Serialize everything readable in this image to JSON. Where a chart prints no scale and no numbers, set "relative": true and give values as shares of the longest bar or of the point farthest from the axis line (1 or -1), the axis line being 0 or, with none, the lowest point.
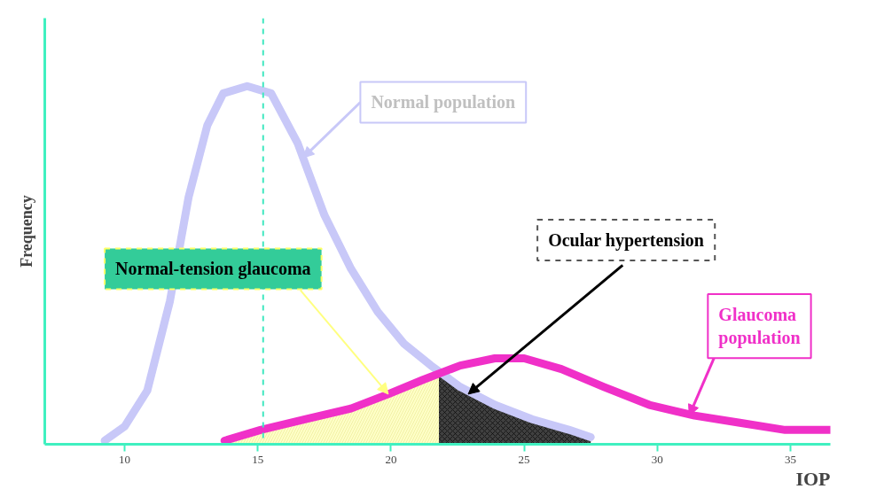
{
  "chart_data": {
    "type": "line",
    "relative": true,
    "xlabel": "IOP",
    "ylabel": "Frequency",
    "xlim": [
      7,
      36.5
    ],
    "xticks": [
      10,
      15,
      20,
      25,
      30,
      35
    ],
    "grid": false,
    "marker": "none",
    "line_style": "solid",
    "series": [
      {
        "color": "#c8c8f8",
        "x": [
          9.25,
          10,
          10.85,
          11.7,
          12.4,
          13.1,
          13.7,
          14.6,
          15.5,
          16.5,
          17.5,
          18.5,
          19.5,
          20.5,
          21.5,
          22.6,
          23.9,
          25.3,
          26.7,
          27.5
        ],
        "values": [
          0.01,
          0.05,
          0.15,
          0.4,
          0.69,
          0.89,
          0.98,
          1.0,
          0.98,
          0.84,
          0.64,
          0.49,
          0.37,
          0.28,
          0.22,
          0.16,
          0.11,
          0.07,
          0.04,
          0.02
        ]
      },
      {
        "color": "#f030c8",
        "x": [
          13.75,
          15.1,
          16.8,
          18.5,
          19.9,
          21.2,
          22.6,
          23.9,
          25,
          26.4,
          28,
          29.7,
          31.4,
          33.1,
          34.8,
          36.5
        ],
        "values": [
          0.01,
          0.04,
          0.07,
          0.1,
          0.14,
          0.18,
          0.22,
          0.24,
          0.24,
          0.21,
          0.16,
          0.11,
          0.08,
          0.06,
          0.04,
          0.04
        ]
      },
      {
        "type": "area",
        "color": "#ffffc8",
        "x": [
          13.75,
          15.1,
          16.8,
          18.5,
          19.9,
          21.2,
          21.8
        ],
        "values": [
          0.01,
          0.04,
          0.07,
          0.1,
          0.14,
          0.18,
          0.2
        ]
      },
      {
        "type": "area",
        "color": "#404040",
        "x": [
          21.8,
          22.6,
          23.9,
          25.3,
          26.7,
          27.5
        ],
        "values": [
          0.2,
          0.16,
          0.11,
          0.07,
          0.04,
          0.02
        ]
      }
    ],
    "ref_lines": [
      {
        "axis": "x",
        "value": 15.2,
        "color": "#40e8c0",
        "line_style": "dashed"
      }
    ],
    "annotations": [
      {
        "text": "Normal population",
        "x": 16.7,
        "y": 0.8
      },
      "Normal-tension glaucoma",
      {
        "text": "Ocular hypertension",
        "x": 22.9,
        "y": 0.14
      },
      {
        "text": "Glaucoma\npopulation",
        "x": 31.2,
        "y": 0.08
      }
    ]
  }
}
